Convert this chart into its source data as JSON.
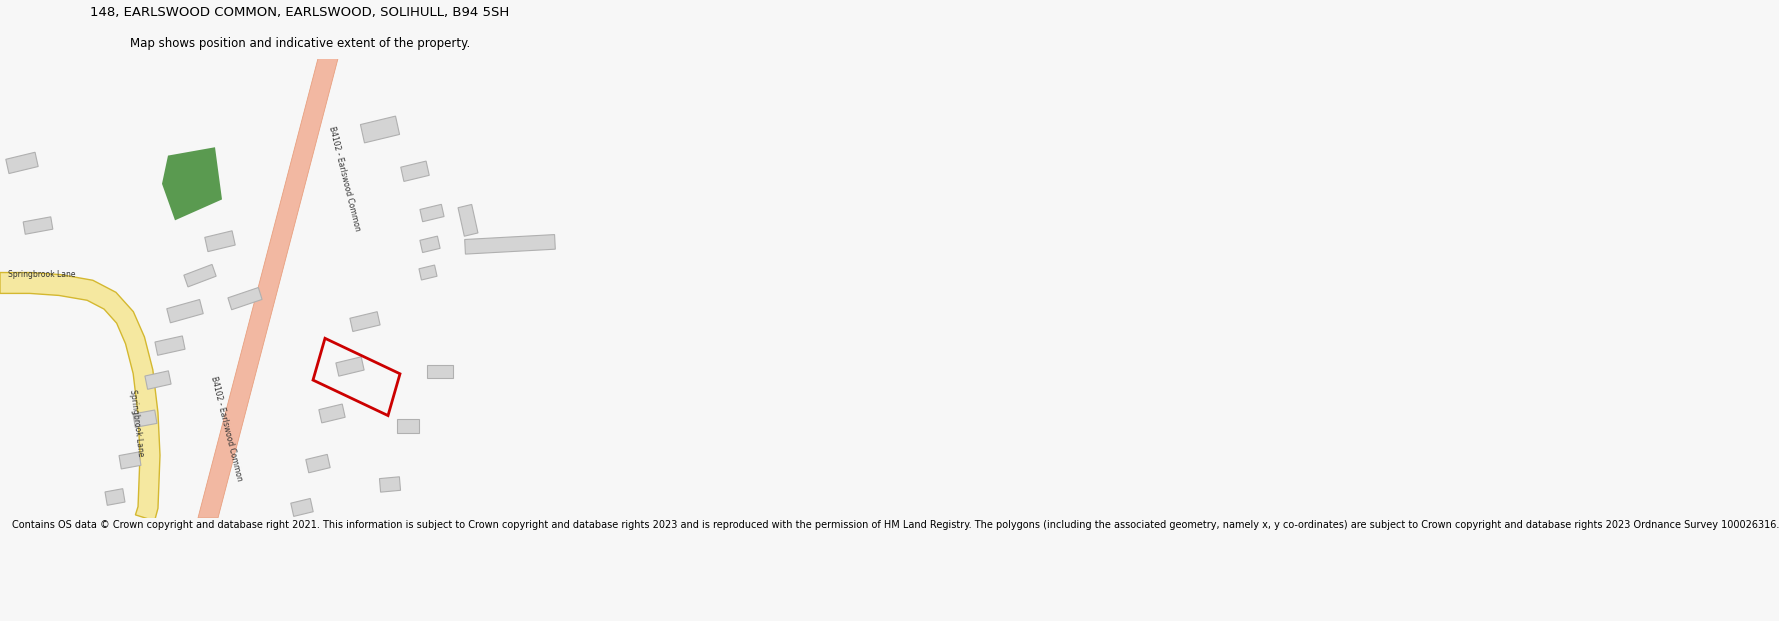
{
  "title_line1": "148, EARLSWOOD COMMON, EARLSWOOD, SOLIHULL, B94 5SH",
  "title_line2": "Map shows position and indicative extent of the property.",
  "footer": "Contains OS data © Crown copyright and database right 2021. This information is subject to Crown copyright and database rights 2023 and is reproduced with the permission of HM Land Registry. The polygons (including the associated geometry, namely x, y co-ordinates) are subject to Crown copyright and database rights 2023 Ordnance Survey 100026316.",
  "bg_color": "#f7f7f7",
  "map_bg": "#ffffff",
  "road_main_color": "#f2b8a2",
  "road_main_edge": "#e8a080",
  "road_secondary_color": "#f5e8a0",
  "road_secondary_edge": "#d4b830",
  "building_color": "#d4d4d4",
  "building_edge": "#b0b0b0",
  "green_patch_color": "#5a9a50",
  "plot_outline_color": "#cc0000",
  "title_fontsize": 9.5,
  "subtitle_fontsize": 8.5,
  "footer_fontsize": 7.0,
  "label_fontsize": 5.5
}
